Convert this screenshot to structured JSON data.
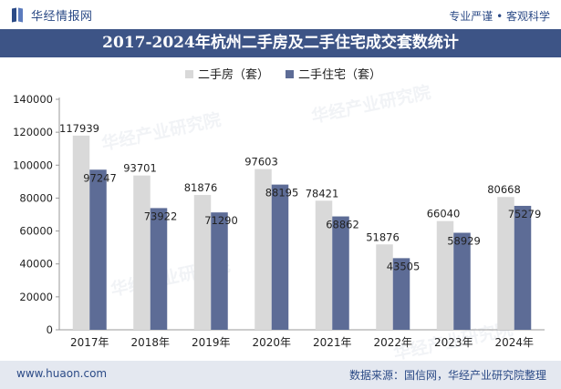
{
  "header": {
    "logo_text": "华经情报网",
    "slogan": "专业严谨 • 客观科学"
  },
  "footer": {
    "website": "www.huaon.com",
    "source": "数据来源：国信网，华经产业研究院整理"
  },
  "watermark": {
    "text": "华经产业研究院",
    "url": "www.huaon.com"
  },
  "colors": {
    "title_bg": "#3d5486",
    "series_second_hand": "#d9d9d9",
    "series_second_hand_residential": "#5d6c96"
  },
  "chart_data": {
    "type": "bar",
    "title": "2017-2024年杭州二手房及二手住宅成交套数统计",
    "xlabel": "",
    "ylabel": "",
    "categories": [
      "2017年",
      "2018年",
      "2019年",
      "2020年",
      "2021年",
      "2022年",
      "2023年",
      "2024年"
    ],
    "series": [
      {
        "name": "二手房（套）",
        "values": [
          117939,
          93701,
          81876,
          97603,
          78421,
          51876,
          66040,
          80668
        ]
      },
      {
        "name": "二手住宅（套）",
        "values": [
          97247,
          73922,
          71290,
          88195,
          68862,
          43505,
          58929,
          75279
        ]
      }
    ],
    "ylim": [
      0,
      140000
    ],
    "yticks": [
      0,
      20000,
      40000,
      60000,
      80000,
      100000,
      120000,
      140000
    ],
    "grid": false,
    "legend_position": "top-center",
    "data_labels": true
  }
}
